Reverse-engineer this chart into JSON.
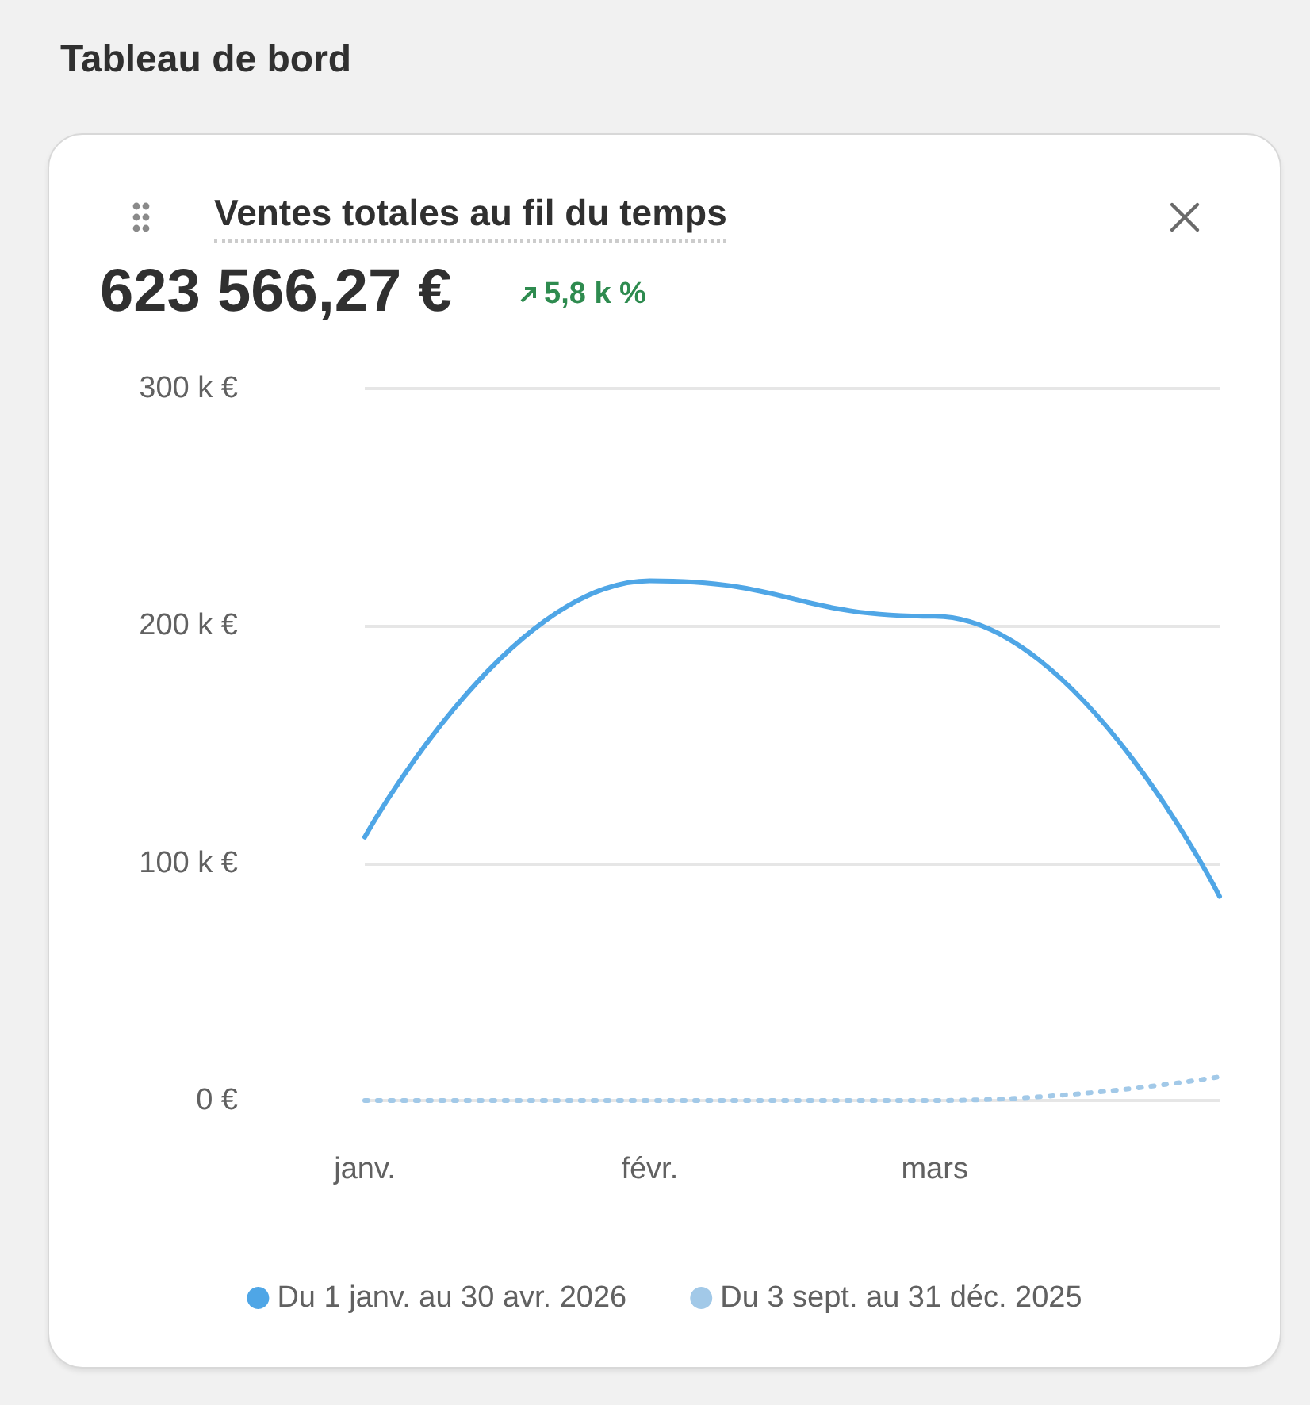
{
  "chart_data": {
    "type": "line",
    "title": "Ventes totales au fil du temps",
    "annotations": [
      "Tableau de bord",
      "623 566,27 €",
      "5,8 k %"
    ],
    "categories": [
      "janv.",
      "févr.",
      "mars",
      null
    ],
    "series": [
      {
        "name": "Du 1 janv. au 30 avr. 2026",
        "color": "#4fa6e6",
        "values": [
          111000,
          219000,
          204000,
          86000
        ]
      },
      {
        "name": "Du 3 sept. au 31 déc. 2025",
        "color": "#a2c9e8",
        "line_style": "dotted",
        "values": [
          0,
          0,
          0,
          10000
        ]
      }
    ],
    "ylim": [
      0,
      300000
    ],
    "yticks": [
      {
        "value": 0,
        "label": "0 €"
      },
      {
        "value": 100000,
        "label": "100 k €"
      },
      {
        "value": 200000,
        "label": "200 k €"
      },
      {
        "value": 300000,
        "label": "300 k €"
      }
    ],
    "grid": "y",
    "legend": "bottom",
    "marker": "none"
  }
}
